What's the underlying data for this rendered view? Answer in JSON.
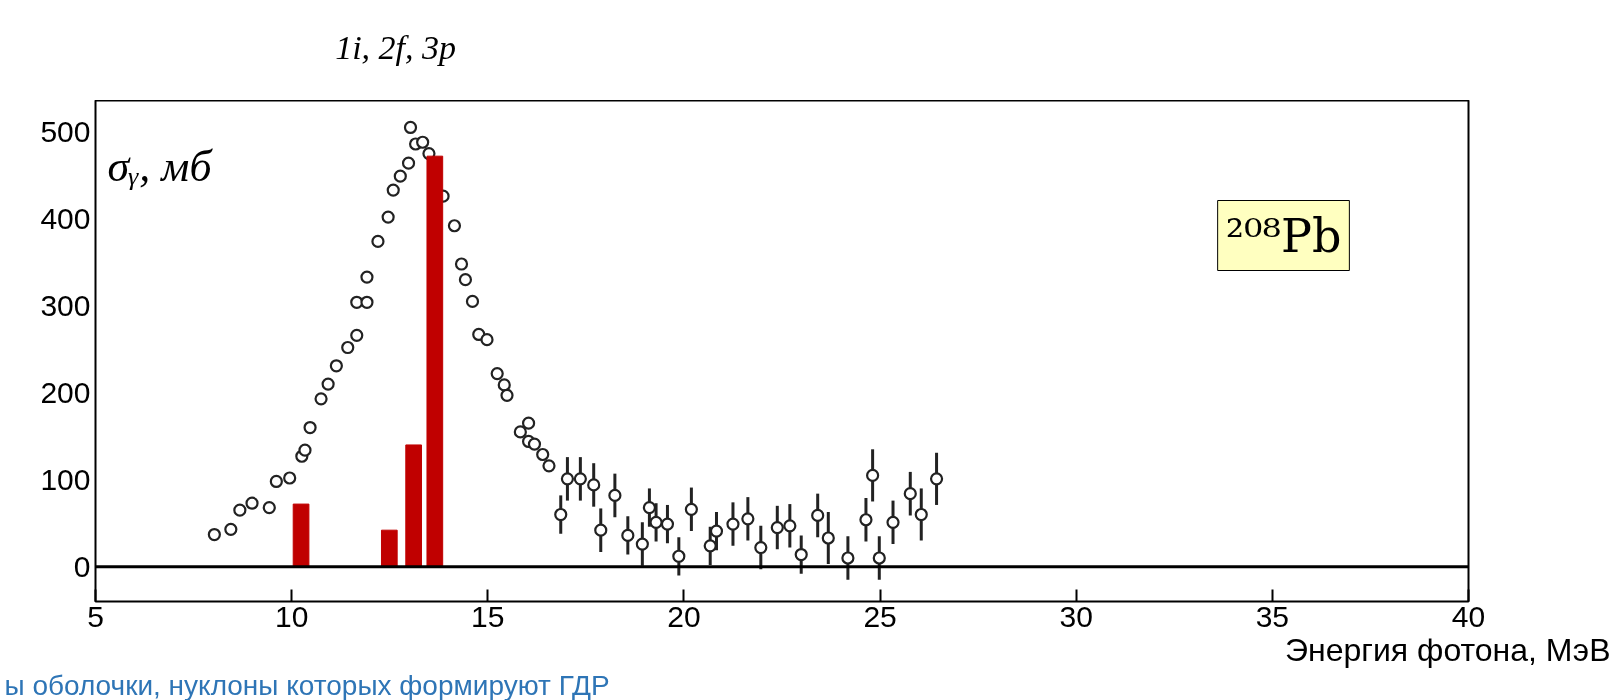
{
  "chart_data": {
    "type": "scatter",
    "xlabel": "Энергия фотона, МэВ",
    "ylabel": "σᵧ, мб",
    "xlim": [
      5,
      40
    ],
    "ylim": [
      -40,
      536
    ],
    "xticks": [
      5,
      10,
      15,
      20,
      25,
      30,
      35,
      40
    ],
    "yticks": [
      0,
      100,
      200,
      300,
      400,
      500
    ],
    "grid": false,
    "marker": "circle",
    "series": [
      {
        "color": "#222222",
        "x": [
          8.03,
          8.45,
          8.68,
          8.99,
          9.43,
          9.61,
          9.95,
          10.26,
          10.34,
          10.47,
          10.75,
          10.93,
          11.14,
          11.43,
          11.66,
          11.66,
          11.92,
          11.92,
          12.2,
          12.46,
          12.59,
          12.77,
          12.98,
          13.03,
          13.16,
          13.34,
          13.5,
          13.86,
          14.15,
          14.33,
          14.43,
          14.61,
          14.77,
          14.98,
          15.24,
          15.42,
          15.49,
          15.83,
          16.04,
          16.04,
          16.19,
          16.4,
          16.56,
          16.86,
          17.03,
          17.36,
          17.7,
          17.88,
          18.24,
          18.57,
          18.94,
          19.12,
          19.29,
          19.58,
          19.87,
          20.19,
          20.67,
          20.83,
          21.25,
          21.63,
          21.96,
          22.38,
          22.7,
          22.99,
          23.41,
          23.68,
          24.18,
          24.64,
          24.81,
          24.98,
          25.33,
          25.77,
          26.05,
          26.44
        ],
        "values": [
          37,
          43,
          65,
          73,
          68,
          98,
          102,
          127,
          134,
          160,
          193,
          210,
          231,
          252,
          266,
          304,
          304,
          333,
          374,
          402,
          433,
          449,
          464,
          505,
          486,
          488,
          475,
          426,
          392,
          348,
          330,
          305,
          267,
          261,
          222,
          209,
          197,
          155,
          165,
          144,
          141,
          129,
          116,
          60,
          101,
          101,
          94,
          42,
          82,
          36,
          26,
          68,
          51,
          49,
          12,
          66,
          24,
          41,
          49,
          55,
          22,
          45,
          47,
          14,
          59,
          33,
          10,
          54,
          105,
          10,
          51,
          84,
          60,
          101
        ],
        "errors": [
          null,
          null,
          null,
          null,
          null,
          null,
          null,
          null,
          null,
          null,
          null,
          null,
          null,
          null,
          null,
          null,
          null,
          null,
          null,
          null,
          null,
          null,
          null,
          null,
          null,
          null,
          null,
          null,
          null,
          null,
          null,
          null,
          null,
          null,
          null,
          null,
          null,
          null,
          null,
          null,
          null,
          null,
          null,
          22,
          25,
          25,
          25,
          25,
          25,
          22,
          25,
          22,
          22,
          22,
          22,
          25,
          22,
          22,
          25,
          25,
          25,
          25,
          25,
          22,
          25,
          30,
          25,
          25,
          30,
          25,
          25,
          25,
          30,
          30
        ]
      },
      {
        "type": "bar",
        "color": "#c00000",
        "x": [
          10.24,
          12.49,
          13.11,
          13.65
        ],
        "values": [
          72,
          42,
          140,
          472
        ]
      }
    ],
    "ref_lines": [
      {
        "axis": "y",
        "value": 0,
        "color": "#000000"
      }
    ],
    "annotations": [
      "²⁰⁸Pb",
      "ы оболочки, нуклоны которых формируют ГДР",
      "1i, 2f, 3p"
    ]
  }
}
